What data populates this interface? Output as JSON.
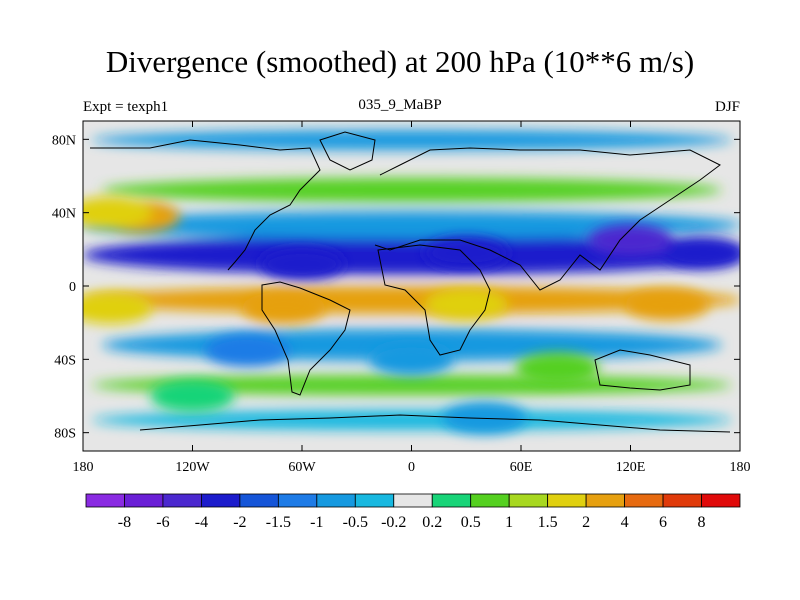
{
  "chart_data": {
    "type": "heatmap",
    "title": "Divergence (smoothed) at 200 hPa (10**6 m/s)",
    "left_label": "Expt = texph1",
    "center_label": "035_9_MaBP",
    "right_label": "DJF",
    "x_ticks": [
      "180",
      "120W",
      "60W",
      "0",
      "60E",
      "120E",
      "180"
    ],
    "x_tick_values": [
      -180,
      -120,
      -60,
      0,
      60,
      120,
      180
    ],
    "y_ticks": [
      "80N",
      "40N",
      "0",
      "40S",
      "80S"
    ],
    "y_tick_values": [
      80,
      40,
      0,
      -40,
      -80
    ],
    "xlim": [
      -180,
      180
    ],
    "ylim": [
      -90,
      90
    ],
    "colorbar": {
      "labels": [
        "-8",
        "-6",
        "-4",
        "-2",
        "-1.5",
        "-1",
        "-0.5",
        "-0.2",
        "0.2",
        "0.5",
        "1",
        "1.5",
        "2",
        "4",
        "6",
        "8"
      ],
      "colors": [
        "#8a2be2",
        "#6a1fd6",
        "#4b28cf",
        "#1c1ccc",
        "#1555d8",
        "#1e7be6",
        "#1699e0",
        "#18b8e0",
        "#e6e6e6",
        "#18d478",
        "#55d020",
        "#a8d820",
        "#e0d010",
        "#e6a010",
        "#e66a10",
        "#e03a0a",
        "#e00a0a"
      ]
    },
    "regions": [
      {
        "lon": -150,
        "lat": 38,
        "value": 3
      },
      {
        "lon": -165,
        "lat": 40,
        "value": 2
      },
      {
        "lon": -60,
        "lat": 12,
        "value": -2
      },
      {
        "lon": 30,
        "lat": 18,
        "value": -3
      },
      {
        "lon": 120,
        "lat": 25,
        "value": -5
      },
      {
        "lon": 160,
        "lat": 18,
        "value": -2
      },
      {
        "lon": -70,
        "lat": -12,
        "value": 3
      },
      {
        "lon": 30,
        "lat": -10,
        "value": 2
      },
      {
        "lon": 140,
        "lat": -10,
        "value": 3
      },
      {
        "lon": -165,
        "lat": -12,
        "value": 2
      },
      {
        "lon": -90,
        "lat": -35,
        "value": -1
      },
      {
        "lon": 0,
        "lat": -40,
        "value": -0.5
      },
      {
        "lon": 80,
        "lat": -45,
        "value": 1
      },
      {
        "lon": -120,
        "lat": -60,
        "value": 0.5
      },
      {
        "lon": 40,
        "lat": -72,
        "value": -0.5
      }
    ]
  }
}
